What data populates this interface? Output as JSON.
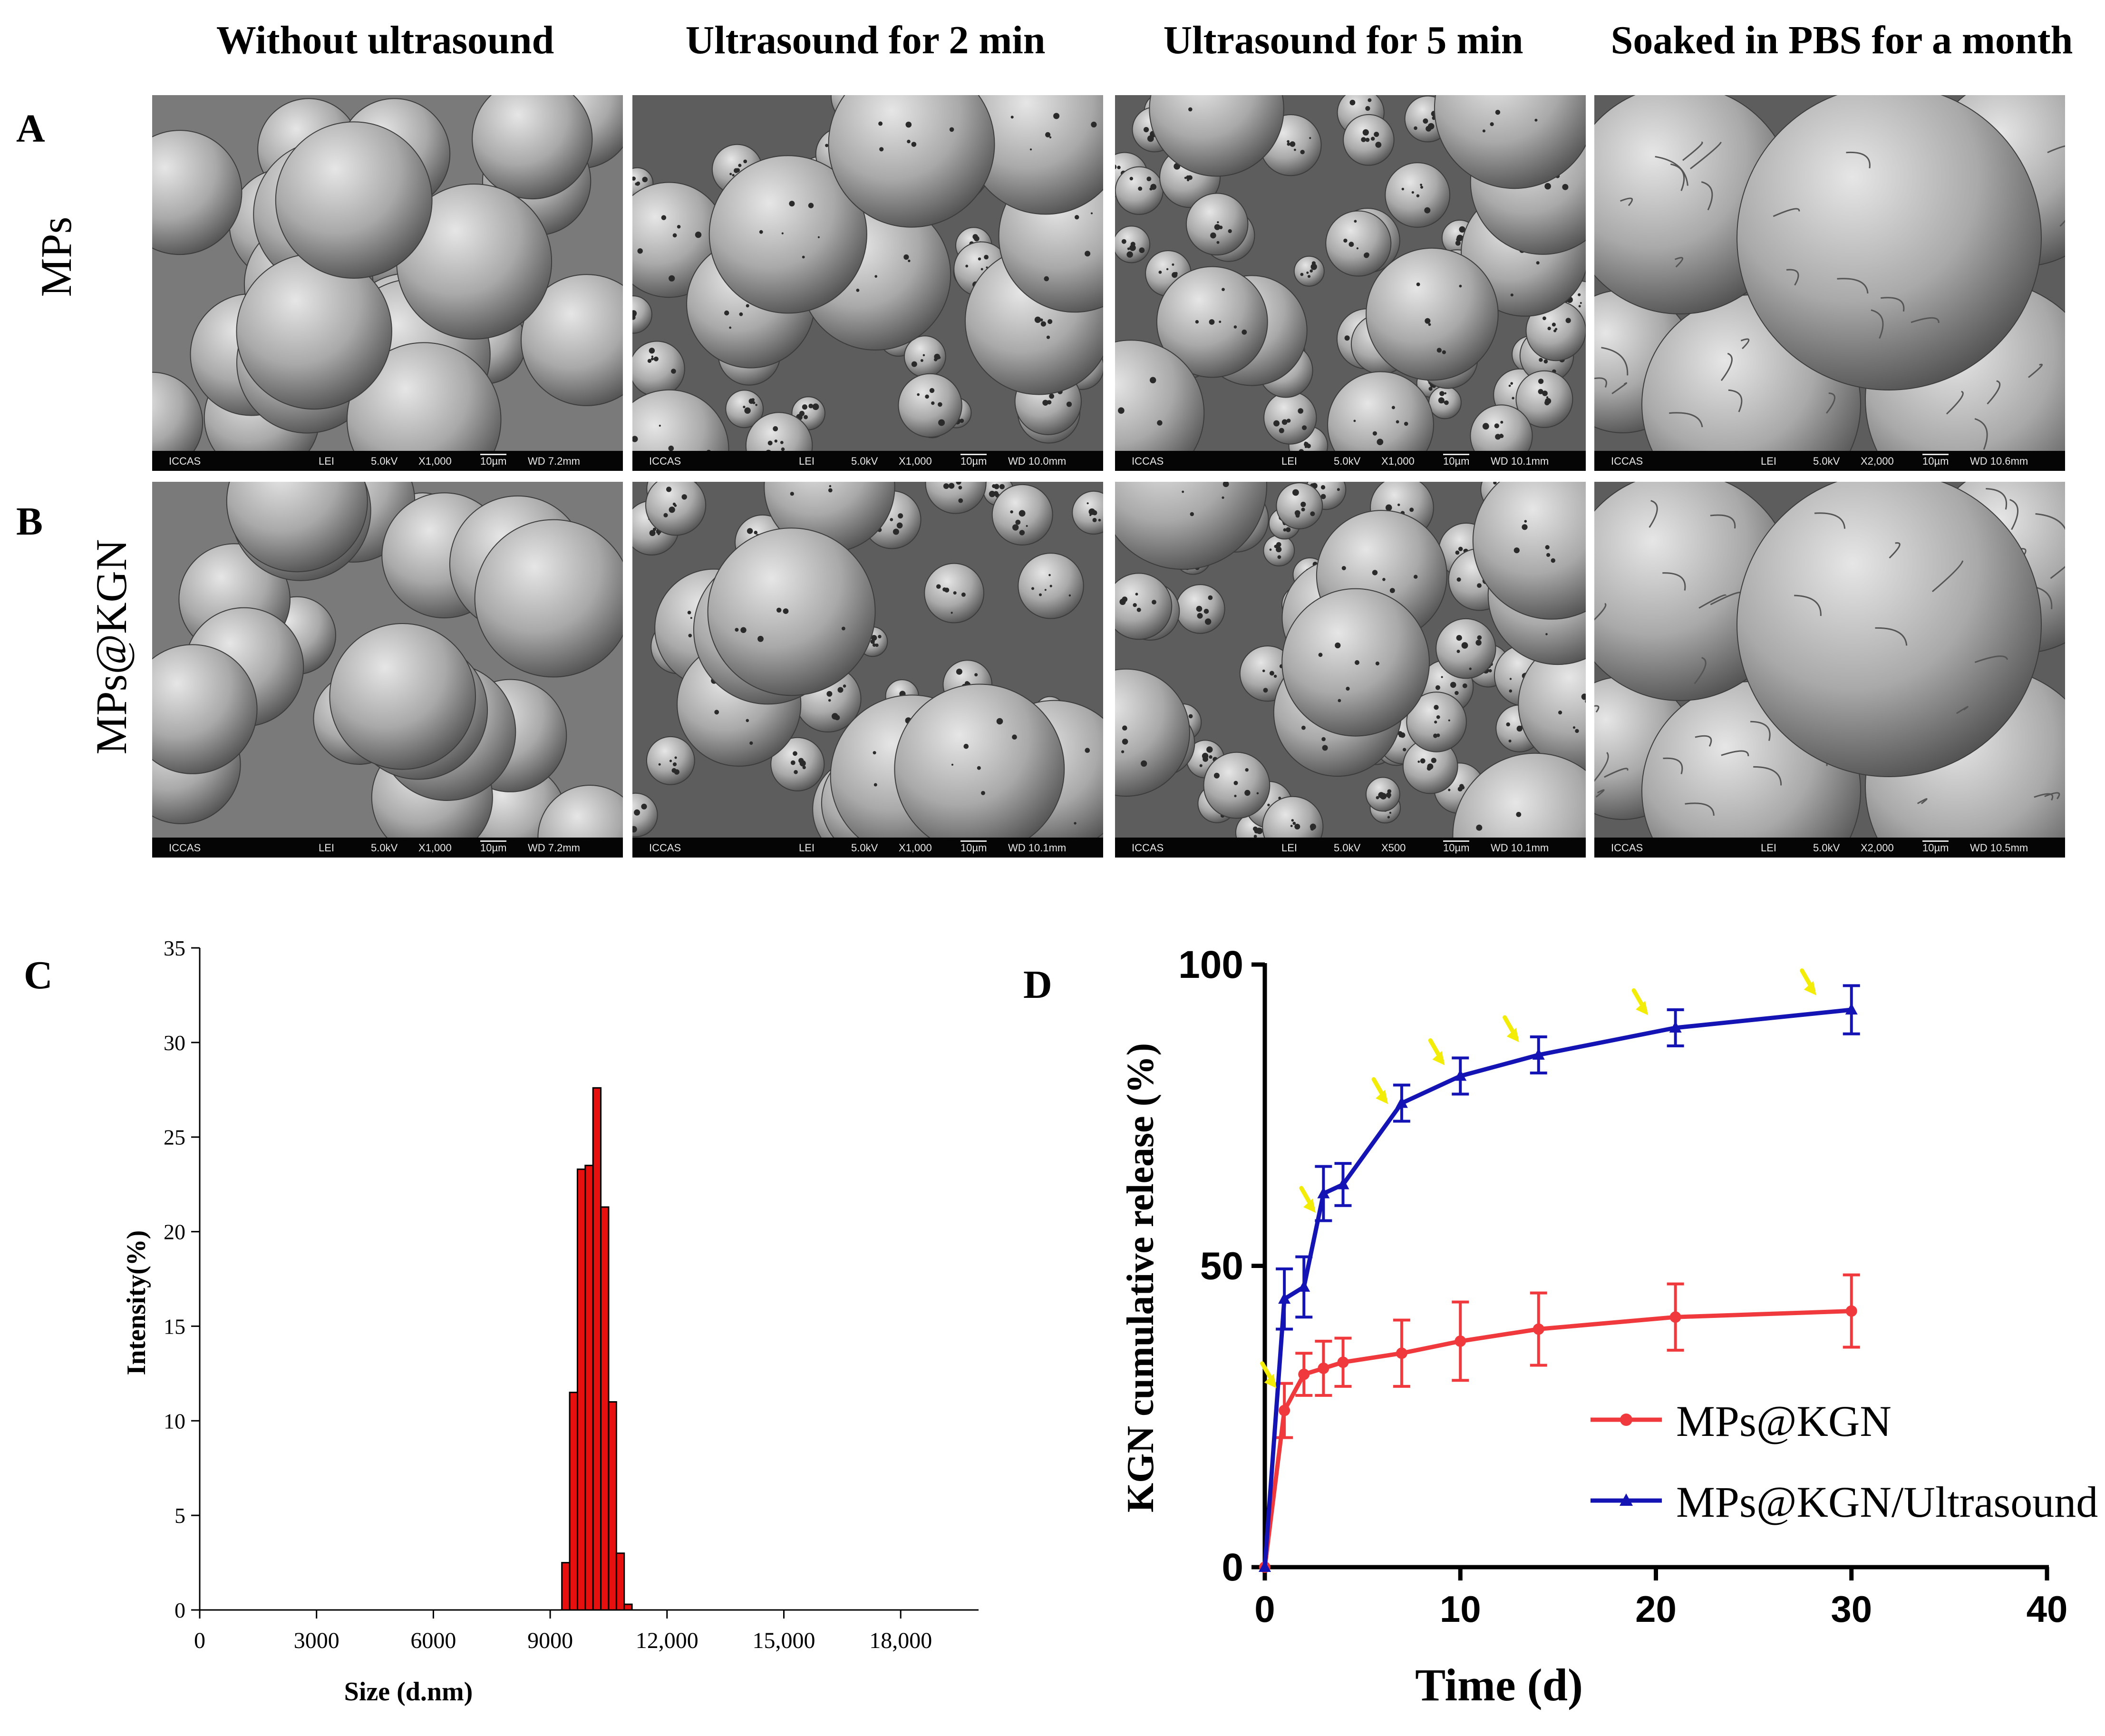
{
  "figure": {
    "column_titles": [
      "Without ultrasound",
      "Ultrasound for 2 min",
      "Ultrasound for 5 min",
      "Soaked in PBS for a month"
    ],
    "row_labels": [
      "MPs",
      "MPs@KGN"
    ],
    "panel_letters": {
      "a": "A",
      "b": "B",
      "c": "C",
      "d": "D"
    },
    "sem_images": [
      {
        "id": "a1",
        "style": "smooth",
        "info": {
          "lab": "ICCAS",
          "det": "LEI",
          "kv": "5.0kV",
          "mag": "X1,000",
          "scale": "10µm",
          "wd": "WD 7.2mm"
        }
      },
      {
        "id": "a2",
        "style": "porous",
        "info": {
          "lab": "ICCAS",
          "det": "LEI",
          "kv": "5.0kV",
          "mag": "X1,000",
          "scale": "10µm",
          "wd": "WD 10.0mm"
        }
      },
      {
        "id": "a3",
        "style": "porous-dense",
        "info": {
          "lab": "ICCAS",
          "det": "LEI",
          "kv": "5.0kV",
          "mag": "X1,000",
          "scale": "10µm",
          "wd": "WD 10.1mm"
        }
      },
      {
        "id": "a4",
        "style": "wrinkled",
        "info": {
          "lab": "ICCAS",
          "det": "LEI",
          "kv": "5.0kV",
          "mag": "X2,000",
          "scale": "10µm",
          "wd": "WD 10.6mm"
        }
      },
      {
        "id": "b1",
        "style": "smooth",
        "info": {
          "lab": "ICCAS",
          "det": "LEI",
          "kv": "5.0kV",
          "mag": "X1,000",
          "scale": "10µm",
          "wd": "WD 7.2mm"
        }
      },
      {
        "id": "b2",
        "style": "porous",
        "info": {
          "lab": "ICCAS",
          "det": "LEI",
          "kv": "5.0kV",
          "mag": "X1,000",
          "scale": "10µm",
          "wd": "WD 10.1mm"
        }
      },
      {
        "id": "b3",
        "style": "porous-dense",
        "info": {
          "lab": "ICCAS",
          "det": "LEI",
          "kv": "5.0kV",
          "mag": "X500",
          "scale": "10µm",
          "wd": "WD 10.1mm"
        }
      },
      {
        "id": "b4",
        "style": "wrinkled",
        "info": {
          "lab": "ICCAS",
          "det": "LEI",
          "kv": "5.0kV",
          "mag": "X2,000",
          "scale": "10µm",
          "wd": "WD 10.5mm"
        }
      }
    ]
  },
  "colors": {
    "histogram_fill": "#e8100e",
    "series_red": "#f0393d",
    "series_blue": "#1414b4",
    "arrow_yellow": "#f2ec07"
  },
  "chart_data": [
    {
      "panel": "C",
      "type": "bar",
      "title": "",
      "xlabel": "Size (d.nm)",
      "ylabel": "Intensity(%)",
      "xlim": [
        0,
        20000
      ],
      "ylim": [
        0,
        35
      ],
      "xticks": [
        0,
        3000,
        6000,
        9000,
        12000,
        15000,
        18000
      ],
      "xtick_labels": [
        "0",
        "3000",
        "6000",
        "9000",
        "12,000",
        "15,000",
        "18,000"
      ],
      "yticks": [
        0,
        5,
        10,
        15,
        20,
        25,
        30,
        35
      ],
      "bin_width": 200,
      "bins": [
        9300,
        9500,
        9700,
        9900,
        10100,
        10300,
        10500,
        10700,
        10900,
        11100
      ],
      "values": [
        2.5,
        11.5,
        23.3,
        23.5,
        27.6,
        21.3,
        11.0,
        3.0,
        0.3,
        0.0
      ]
    },
    {
      "panel": "D",
      "type": "line",
      "title": "",
      "xlabel": "Time (d)",
      "ylabel": "KGN cumulative release (%)",
      "xlim": [
        0,
        40
      ],
      "ylim": [
        0,
        100
      ],
      "xticks": [
        0,
        10,
        20,
        30,
        40
      ],
      "yticks": [
        0,
        50,
        100
      ],
      "legend_position": "bottom-right",
      "x": [
        0,
        1,
        2,
        3,
        4,
        7,
        10,
        14,
        21,
        30
      ],
      "series": [
        {
          "name": "MPs@KGN",
          "marker": "circle",
          "values": [
            0,
            26,
            32,
            33,
            34,
            35.5,
            37.5,
            39.5,
            41.5,
            42.5
          ],
          "errors": [
            0,
            4.5,
            3.5,
            4.5,
            4,
            5.5,
            6.5,
            6,
            5.5,
            6
          ]
        },
        {
          "name": "MPs@KGN/Ultrasound",
          "marker": "triangle",
          "values": [
            0,
            44.5,
            46.5,
            62,
            63.5,
            77,
            81.5,
            85,
            89.5,
            92.5
          ],
          "errors": [
            0,
            5,
            5,
            4.5,
            3.5,
            3,
            3,
            3,
            3,
            4
          ]
        }
      ],
      "arrow_annotations_x": [
        0.6,
        2.6,
        6.3,
        9.2,
        13,
        19.6,
        28.2
      ]
    }
  ]
}
